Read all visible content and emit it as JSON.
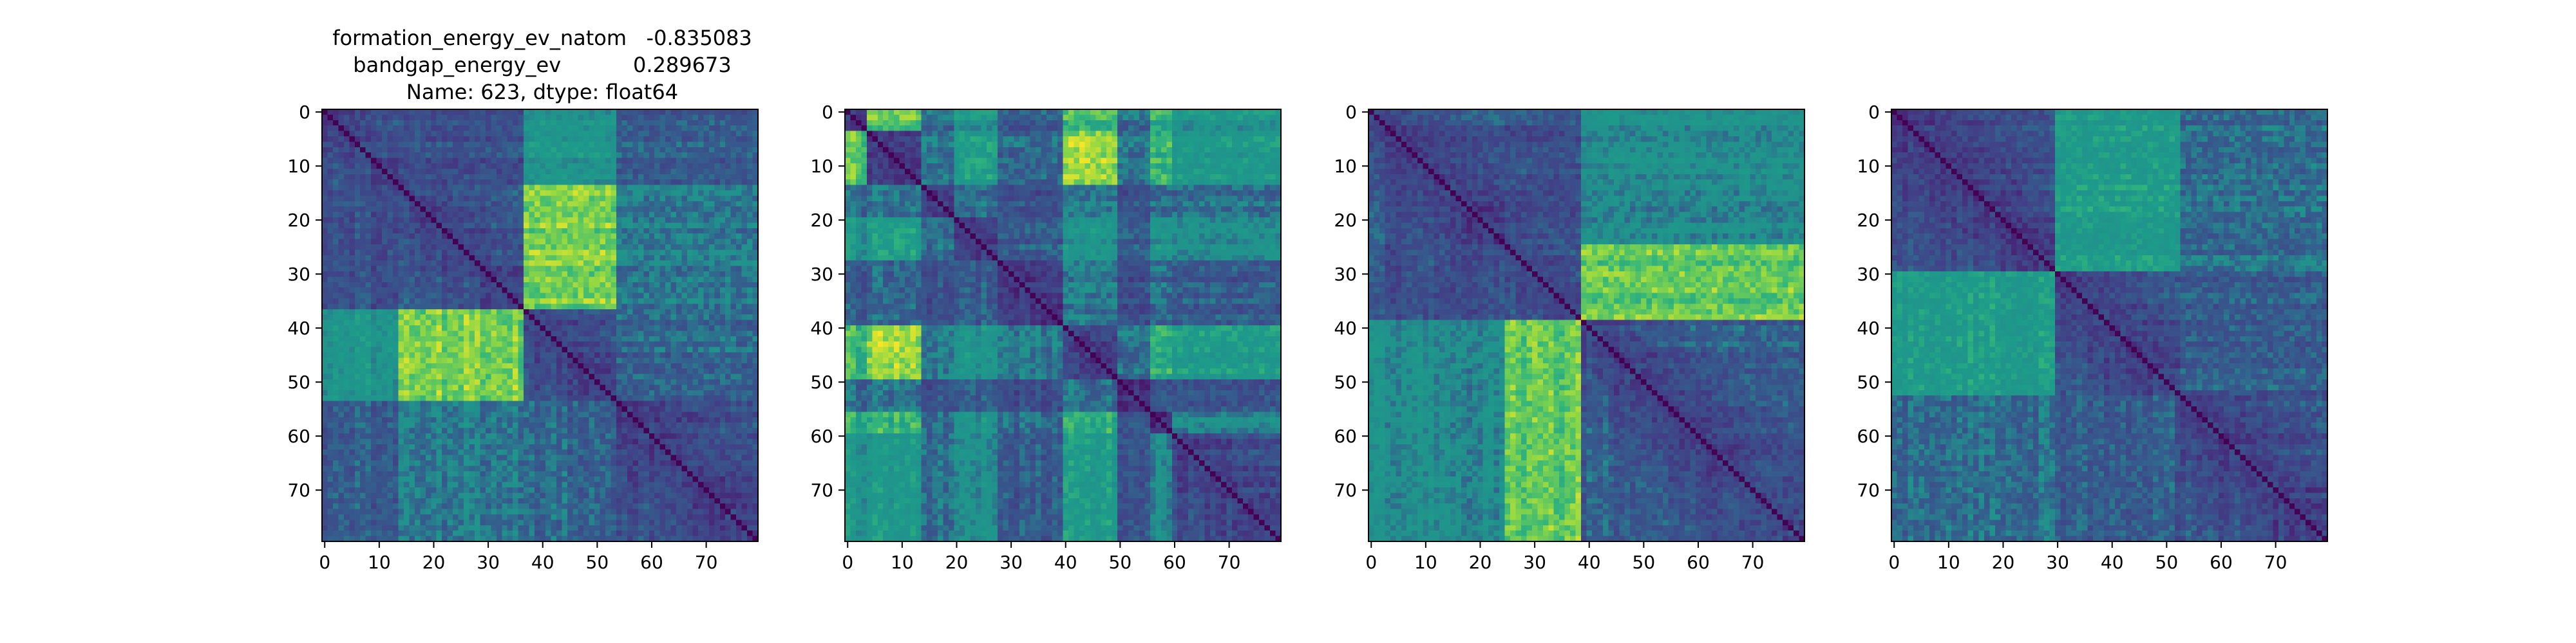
{
  "figure": {
    "title_lines": [
      "formation_energy_ev_natom   -0.835083",
      "bandgap_energy_ev           0.289673",
      "Name: 623, dtype: float64"
    ]
  },
  "chart_data": [
    {
      "type": "heatmap",
      "title": "formation_energy_ev_natom   -0.835083\nbandgap_energy_ev           0.289673\nName: 623, dtype: float64",
      "matrix_size": 80,
      "colormap": "viridis",
      "x_ticks": [
        0,
        10,
        20,
        30,
        40,
        50,
        60,
        70
      ],
      "y_ticks": [
        0,
        10,
        20,
        30,
        40,
        50,
        60,
        70
      ],
      "xlim": [
        -0.5,
        79.5
      ],
      "ylim": [
        79.5,
        -0.5
      ],
      "blocks": [
        [
          0,
          14
        ],
        [
          14,
          37
        ],
        [
          37,
          54
        ],
        [
          54,
          80
        ]
      ],
      "block_means": [
        [
          0.25,
          0.3,
          0.55,
          0.35
        ],
        [
          0.3,
          0.25,
          0.85,
          0.45
        ],
        [
          0.55,
          0.85,
          0.25,
          0.4
        ],
        [
          0.35,
          0.45,
          0.4,
          0.22
        ]
      ]
    },
    {
      "type": "heatmap",
      "title": "",
      "matrix_size": 80,
      "colormap": "viridis",
      "x_ticks": [
        0,
        10,
        20,
        30,
        40,
        50,
        60,
        70
      ],
      "y_ticks": [
        0,
        10,
        20,
        30,
        40,
        50,
        60,
        70
      ],
      "xlim": [
        -0.5,
        79.5
      ],
      "ylim": [
        79.5,
        -0.5
      ],
      "blocks": [
        [
          0,
          4
        ],
        [
          4,
          14
        ],
        [
          14,
          20
        ],
        [
          20,
          28
        ],
        [
          28,
          40
        ],
        [
          40,
          50
        ],
        [
          50,
          56
        ],
        [
          56,
          60
        ],
        [
          60,
          80
        ]
      ],
      "block_means": [
        [
          0.15,
          0.8,
          0.4,
          0.55,
          0.35,
          0.75,
          0.4,
          0.7,
          0.55
        ],
        [
          0.8,
          0.2,
          0.45,
          0.65,
          0.4,
          0.9,
          0.45,
          0.75,
          0.6
        ],
        [
          0.4,
          0.45,
          0.2,
          0.4,
          0.3,
          0.45,
          0.3,
          0.4,
          0.4
        ],
        [
          0.55,
          0.65,
          0.4,
          0.2,
          0.35,
          0.55,
          0.35,
          0.55,
          0.5
        ],
        [
          0.35,
          0.4,
          0.3,
          0.35,
          0.18,
          0.45,
          0.3,
          0.4,
          0.35
        ],
        [
          0.75,
          0.9,
          0.45,
          0.55,
          0.45,
          0.2,
          0.4,
          0.7,
          0.6
        ],
        [
          0.4,
          0.45,
          0.3,
          0.35,
          0.3,
          0.4,
          0.18,
          0.35,
          0.35
        ],
        [
          0.7,
          0.75,
          0.4,
          0.55,
          0.4,
          0.7,
          0.35,
          0.15,
          0.5
        ],
        [
          0.55,
          0.6,
          0.4,
          0.5,
          0.35,
          0.6,
          0.35,
          0.5,
          0.22
        ]
      ]
    },
    {
      "type": "heatmap",
      "title": "",
      "matrix_size": 80,
      "colormap": "viridis",
      "x_ticks": [
        0,
        10,
        20,
        30,
        40,
        50,
        60,
        70
      ],
      "y_ticks": [
        0,
        10,
        20,
        30,
        40,
        50,
        60,
        70
      ],
      "xlim": [
        -0.5,
        79.5
      ],
      "ylim": [
        79.5,
        -0.5
      ],
      "blocks": [
        [
          0,
          25
        ],
        [
          25,
          39
        ],
        [
          39,
          80
        ]
      ],
      "block_means": [
        [
          0.22,
          0.3,
          0.5
        ],
        [
          0.3,
          0.25,
          0.82
        ],
        [
          0.5,
          0.82,
          0.25
        ]
      ]
    },
    {
      "type": "heatmap",
      "title": "",
      "matrix_size": 80,
      "colormap": "viridis",
      "x_ticks": [
        0,
        10,
        20,
        30,
        40,
        50,
        60,
        70
      ],
      "y_ticks": [
        0,
        10,
        20,
        30,
        40,
        50,
        60,
        70
      ],
      "xlim": [
        -0.5,
        79.5
      ],
      "ylim": [
        79.5,
        -0.5
      ],
      "blocks": [
        [
          0,
          30
        ],
        [
          30,
          53
        ],
        [
          53,
          80
        ]
      ],
      "block_means": [
        [
          0.22,
          0.62,
          0.42
        ],
        [
          0.62,
          0.22,
          0.35
        ],
        [
          0.42,
          0.35,
          0.22
        ]
      ]
    }
  ]
}
